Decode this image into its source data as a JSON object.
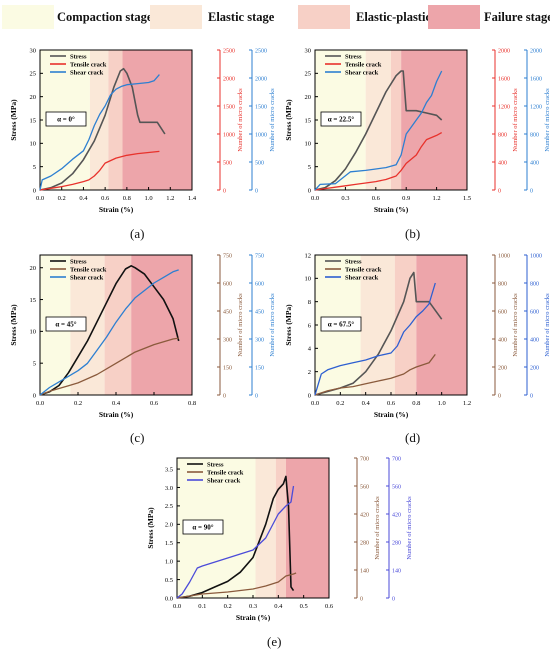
{
  "stage_legend": [
    {
      "label": "Compaction stage",
      "color": "#fbfbe3"
    },
    {
      "label": "Elastic stage",
      "color": "#fae8d8"
    },
    {
      "label": "Elastic-plastic stage",
      "color": "#f7d0c6"
    },
    {
      "label": "Failure stage",
      "color": "#eda5aa"
    }
  ],
  "series_colors": {
    "stress": "#555555",
    "tensile": "#e8322c",
    "shear": "#2d7fd1"
  },
  "chart_data": [
    {
      "type": "line",
      "caption": "(a)",
      "angle_label": "α = 0°",
      "xlabel": "Strain (%)",
      "ylabel": "Stress (MPa)",
      "y2label": "Number of micro cracks",
      "y3label": "Number of micro cracks",
      "xlim": [
        0,
        1.4
      ],
      "xticks": [
        "0.0",
        "0.2",
        "0.4",
        "0.6",
        "0.8",
        "1.0",
        "1.2",
        "1.4"
      ],
      "ylim": [
        0,
        30
      ],
      "yticks": [
        "0",
        "5",
        "10",
        "15",
        "20",
        "25",
        "30"
      ],
      "y2lim": [
        0,
        2500
      ],
      "y2ticks": [
        "0",
        "500",
        "1000",
        "1500",
        "2000",
        "2500"
      ],
      "y3lim": [
        0,
        2500
      ],
      "y3ticks": [
        "0",
        "500",
        "1000",
        "1500",
        "2000",
        "2500"
      ],
      "stages": [
        0.46,
        0.63,
        0.76
      ],
      "legend": [
        "Stress",
        "Tensile crack",
        "Shear crack"
      ],
      "colors": [
        "#555555",
        "#e8322c",
        "#2d7fd1"
      ],
      "series": [
        {
          "name": "Stress",
          "axis": "y",
          "x": [
            0,
            0.1,
            0.2,
            0.3,
            0.4,
            0.5,
            0.6,
            0.68,
            0.74,
            0.77,
            0.8,
            0.85,
            0.9,
            0.92,
            1.0,
            1.08,
            1.15
          ],
          "values": [
            0,
            0.5,
            1.5,
            3.5,
            6.5,
            10.5,
            16,
            22,
            25.5,
            26,
            25,
            22,
            16,
            14.5,
            14.5,
            14.5,
            12
          ]
        },
        {
          "name": "Tensile crack",
          "axis": "y2",
          "x": [
            0,
            0.1,
            0.2,
            0.3,
            0.4,
            0.45,
            0.5,
            0.55,
            0.6,
            0.7,
            0.8,
            0.9,
            1.0,
            1.1
          ],
          "values": [
            0,
            30,
            60,
            100,
            150,
            180,
            250,
            350,
            480,
            570,
            620,
            650,
            670,
            690
          ]
        },
        {
          "name": "Shear crack",
          "axis": "y3",
          "x": [
            0,
            0.02,
            0.1,
            0.2,
            0.3,
            0.4,
            0.45,
            0.5,
            0.55,
            0.6,
            0.65,
            0.7,
            0.75,
            0.8,
            0.9,
            1.0,
            1.05,
            1.1
          ],
          "values": [
            0,
            180,
            250,
            380,
            550,
            700,
            900,
            1150,
            1350,
            1500,
            1700,
            1800,
            1850,
            1880,
            1900,
            1920,
            1950,
            2060
          ]
        }
      ]
    },
    {
      "type": "line",
      "caption": "(b)",
      "angle_label": "α = 22.5°",
      "xlabel": "Strain (%)",
      "ylabel": "Stress (MPa)",
      "y2label": "Number of micro cracks",
      "y3label": "Number of micro cracks",
      "xlim": [
        0,
        1.5
      ],
      "xticks": [
        "0.0",
        "0.3",
        "0.6",
        "0.9",
        "1.2",
        "1.5"
      ],
      "ylim": [
        0,
        30
      ],
      "yticks": [
        "0",
        "5",
        "10",
        "15",
        "20",
        "25",
        "30"
      ],
      "y2lim": [
        0,
        2000
      ],
      "y2ticks": [
        "0",
        "400",
        "800",
        "1200",
        "1600",
        "2000"
      ],
      "y3lim": [
        0,
        2000
      ],
      "y3ticks": [
        "0",
        "400",
        "800",
        "1200",
        "1600",
        "2000"
      ],
      "stages": [
        0.5,
        0.75,
        0.85
      ],
      "legend": [
        "Stress",
        "Tensile crack",
        "Shear crack"
      ],
      "colors": [
        "#555555",
        "#e8322c",
        "#2d7fd1"
      ],
      "series": [
        {
          "name": "Stress",
          "axis": "y",
          "x": [
            0,
            0.1,
            0.2,
            0.3,
            0.4,
            0.5,
            0.6,
            0.7,
            0.8,
            0.85,
            0.87,
            0.9,
            1.0,
            1.1,
            1.2,
            1.25
          ],
          "values": [
            0,
            0.5,
            2,
            4.5,
            8,
            12,
            16.5,
            21,
            24.5,
            25.5,
            25.5,
            17,
            17,
            16.5,
            16,
            15
          ]
        },
        {
          "name": "Tensile crack",
          "axis": "y2",
          "x": [
            0,
            0.1,
            0.2,
            0.3,
            0.4,
            0.5,
            0.6,
            0.7,
            0.8,
            0.85,
            0.9,
            1.0,
            1.05,
            1.1,
            1.2,
            1.25
          ],
          "values": [
            0,
            20,
            40,
            60,
            80,
            100,
            120,
            150,
            200,
            280,
            380,
            500,
            620,
            720,
            780,
            820
          ]
        },
        {
          "name": "Shear crack",
          "axis": "y3",
          "x": [
            0,
            0.05,
            0.2,
            0.35,
            0.5,
            0.6,
            0.7,
            0.8,
            0.85,
            0.9,
            0.95,
            1.0,
            1.05,
            1.1,
            1.15,
            1.2,
            1.25
          ],
          "values": [
            0,
            80,
            90,
            260,
            280,
            300,
            320,
            360,
            500,
            800,
            900,
            1000,
            1100,
            1250,
            1350,
            1550,
            1700
          ]
        }
      ]
    },
    {
      "type": "line",
      "caption": "(c)",
      "angle_label": "α = 45°",
      "xlabel": "Strain (%)",
      "ylabel": "Stress (MPa)",
      "y2label": "Number of micro cracks",
      "y3label": "Number of micro cracks",
      "xlim": [
        0,
        0.8
      ],
      "xticks": [
        "0.0",
        "0.2",
        "0.4",
        "0.6",
        "0.8"
      ],
      "ylim": [
        0,
        22
      ],
      "yticks": [
        "0",
        "5",
        "10",
        "15",
        "20"
      ],
      "y2lim": [
        0,
        750
      ],
      "y2ticks": [
        "0",
        "150",
        "300",
        "450",
        "600",
        "750"
      ],
      "y3lim": [
        0,
        750
      ],
      "y3ticks": [
        "0",
        "150",
        "300",
        "450",
        "600",
        "750"
      ],
      "stages": [
        0.16,
        0.34,
        0.48
      ],
      "legend": [
        "Stress",
        "Tensile crack",
        "Shear crack"
      ],
      "colors": [
        "#111111",
        "#8a5a3c",
        "#2d7fd1"
      ],
      "series": [
        {
          "name": "Stress",
          "axis": "y",
          "x": [
            0,
            0.05,
            0.1,
            0.15,
            0.2,
            0.25,
            0.3,
            0.35,
            0.4,
            0.45,
            0.48,
            0.5,
            0.55,
            0.6,
            0.65,
            0.7,
            0.73
          ],
          "values": [
            0,
            0.5,
            1.5,
            3.5,
            6,
            8.5,
            11.5,
            14.5,
            17.5,
            19.8,
            20.3,
            20,
            19,
            17,
            15,
            12,
            8.5
          ]
        },
        {
          "name": "Tensile crack",
          "axis": "y2",
          "x": [
            0,
            0.05,
            0.1,
            0.15,
            0.2,
            0.3,
            0.4,
            0.5,
            0.6,
            0.7,
            0.73
          ],
          "values": [
            0,
            20,
            35,
            50,
            65,
            110,
            170,
            230,
            270,
            300,
            305
          ]
        },
        {
          "name": "Shear crack",
          "axis": "y3",
          "x": [
            0,
            0.05,
            0.1,
            0.15,
            0.2,
            0.25,
            0.3,
            0.35,
            0.4,
            0.45,
            0.5,
            0.55,
            0.6,
            0.65,
            0.7,
            0.73
          ],
          "values": [
            0,
            40,
            70,
            100,
            130,
            170,
            240,
            310,
            390,
            460,
            520,
            560,
            600,
            630,
            660,
            670
          ]
        }
      ]
    },
    {
      "type": "line",
      "caption": "(d)",
      "angle_label": "α = 67.5°",
      "xlabel": "Strain (%)",
      "ylabel": "Stress (MPa)",
      "y2label": "Number of micro cracks",
      "y3label": "Number of micro cracks",
      "xlim": [
        0,
        1.2
      ],
      "xticks": [
        "0.0",
        "0.2",
        "0.4",
        "0.6",
        "0.8",
        "1.0",
        "1.2"
      ],
      "ylim": [
        0,
        12
      ],
      "yticks": [
        "0",
        "2",
        "4",
        "6",
        "8",
        "10",
        "12"
      ],
      "y2lim": [
        0,
        1000
      ],
      "y2ticks": [
        "0",
        "200",
        "400",
        "600",
        "800",
        "1000"
      ],
      "y3lim": [
        0,
        1000
      ],
      "y3ticks": [
        "0",
        "200",
        "400",
        "600",
        "800",
        "1000"
      ],
      "stages": [
        0.36,
        0.63,
        0.8
      ],
      "legend": [
        "Stress",
        "Tensile crack",
        "Shear crack"
      ],
      "colors": [
        "#555555",
        "#8a5a3c",
        "#2d5fd1"
      ],
      "series": [
        {
          "name": "Stress",
          "axis": "y",
          "x": [
            0,
            0.1,
            0.2,
            0.3,
            0.4,
            0.5,
            0.6,
            0.7,
            0.75,
            0.78,
            0.8,
            0.85,
            0.9,
            1.0
          ],
          "values": [
            0,
            0.3,
            0.6,
            1,
            2,
            3.5,
            5.5,
            8,
            10,
            10.5,
            8,
            8,
            8,
            6.5
          ]
        },
        {
          "name": "Tensile crack",
          "axis": "y2",
          "x": [
            0,
            0.1,
            0.2,
            0.3,
            0.4,
            0.5,
            0.6,
            0.7,
            0.75,
            0.8,
            0.9,
            0.95
          ],
          "values": [
            0,
            30,
            50,
            60,
            80,
            100,
            120,
            150,
            180,
            200,
            230,
            290
          ]
        },
        {
          "name": "Shear crack",
          "axis": "y3",
          "x": [
            0,
            0.05,
            0.1,
            0.2,
            0.3,
            0.4,
            0.5,
            0.6,
            0.65,
            0.7,
            0.75,
            0.8,
            0.85,
            0.9,
            0.95
          ],
          "values": [
            0,
            150,
            180,
            210,
            230,
            250,
            280,
            300,
            350,
            450,
            500,
            560,
            600,
            650,
            800
          ]
        }
      ]
    },
    {
      "type": "line",
      "caption": "(e)",
      "angle_label": "α = 90°",
      "xlabel": "Strain (%)",
      "ylabel": "Stress (MPa)",
      "y2label": "Number of micro cracks",
      "y3label": "Number of micro cracks",
      "xlim": [
        0,
        0.6
      ],
      "xticks": [
        "0.0",
        "0.1",
        "0.2",
        "0.3",
        "0.4",
        "0.5",
        "0.6"
      ],
      "ylim": [
        0,
        3.8
      ],
      "yticks": [
        "0.0",
        "0.5",
        "1.0",
        "1.5",
        "2.0",
        "2.5",
        "3.0",
        "3.5"
      ],
      "y2lim": [
        0,
        700
      ],
      "y2ticks": [
        "0",
        "140",
        "280",
        "420",
        "560",
        "700"
      ],
      "y3lim": [
        0,
        700
      ],
      "y3ticks": [
        "0",
        "140",
        "280",
        "420",
        "560",
        "700"
      ],
      "stages": [
        0.31,
        0.39,
        0.43
      ],
      "legend": [
        "Stress",
        "Tensile crack",
        "Shear crack"
      ],
      "colors": [
        "#111111",
        "#8a5a3c",
        "#4b4bd9"
      ],
      "series": [
        {
          "name": "Stress",
          "axis": "y",
          "x": [
            0,
            0.05,
            0.1,
            0.15,
            0.2,
            0.25,
            0.3,
            0.35,
            0.38,
            0.4,
            0.42,
            0.43,
            0.44,
            0.45,
            0.46
          ],
          "values": [
            0,
            0.05,
            0.15,
            0.3,
            0.45,
            0.7,
            1.1,
            2,
            2.7,
            2.95,
            3.1,
            3.3,
            2.5,
            0.3,
            0.2
          ]
        },
        {
          "name": "Tensile crack",
          "axis": "y2",
          "x": [
            0,
            0.05,
            0.1,
            0.2,
            0.3,
            0.35,
            0.4,
            0.43,
            0.46,
            0.47
          ],
          "values": [
            0,
            10,
            20,
            30,
            45,
            60,
            80,
            110,
            120,
            125
          ]
        },
        {
          "name": "Shear crack",
          "axis": "y3",
          "x": [
            0,
            0.02,
            0.05,
            0.08,
            0.1,
            0.15,
            0.2,
            0.25,
            0.3,
            0.35,
            0.4,
            0.43,
            0.45,
            0.46
          ],
          "values": [
            0,
            20,
            80,
            150,
            160,
            180,
            200,
            220,
            240,
            300,
            420,
            460,
            480,
            560
          ]
        }
      ]
    }
  ]
}
